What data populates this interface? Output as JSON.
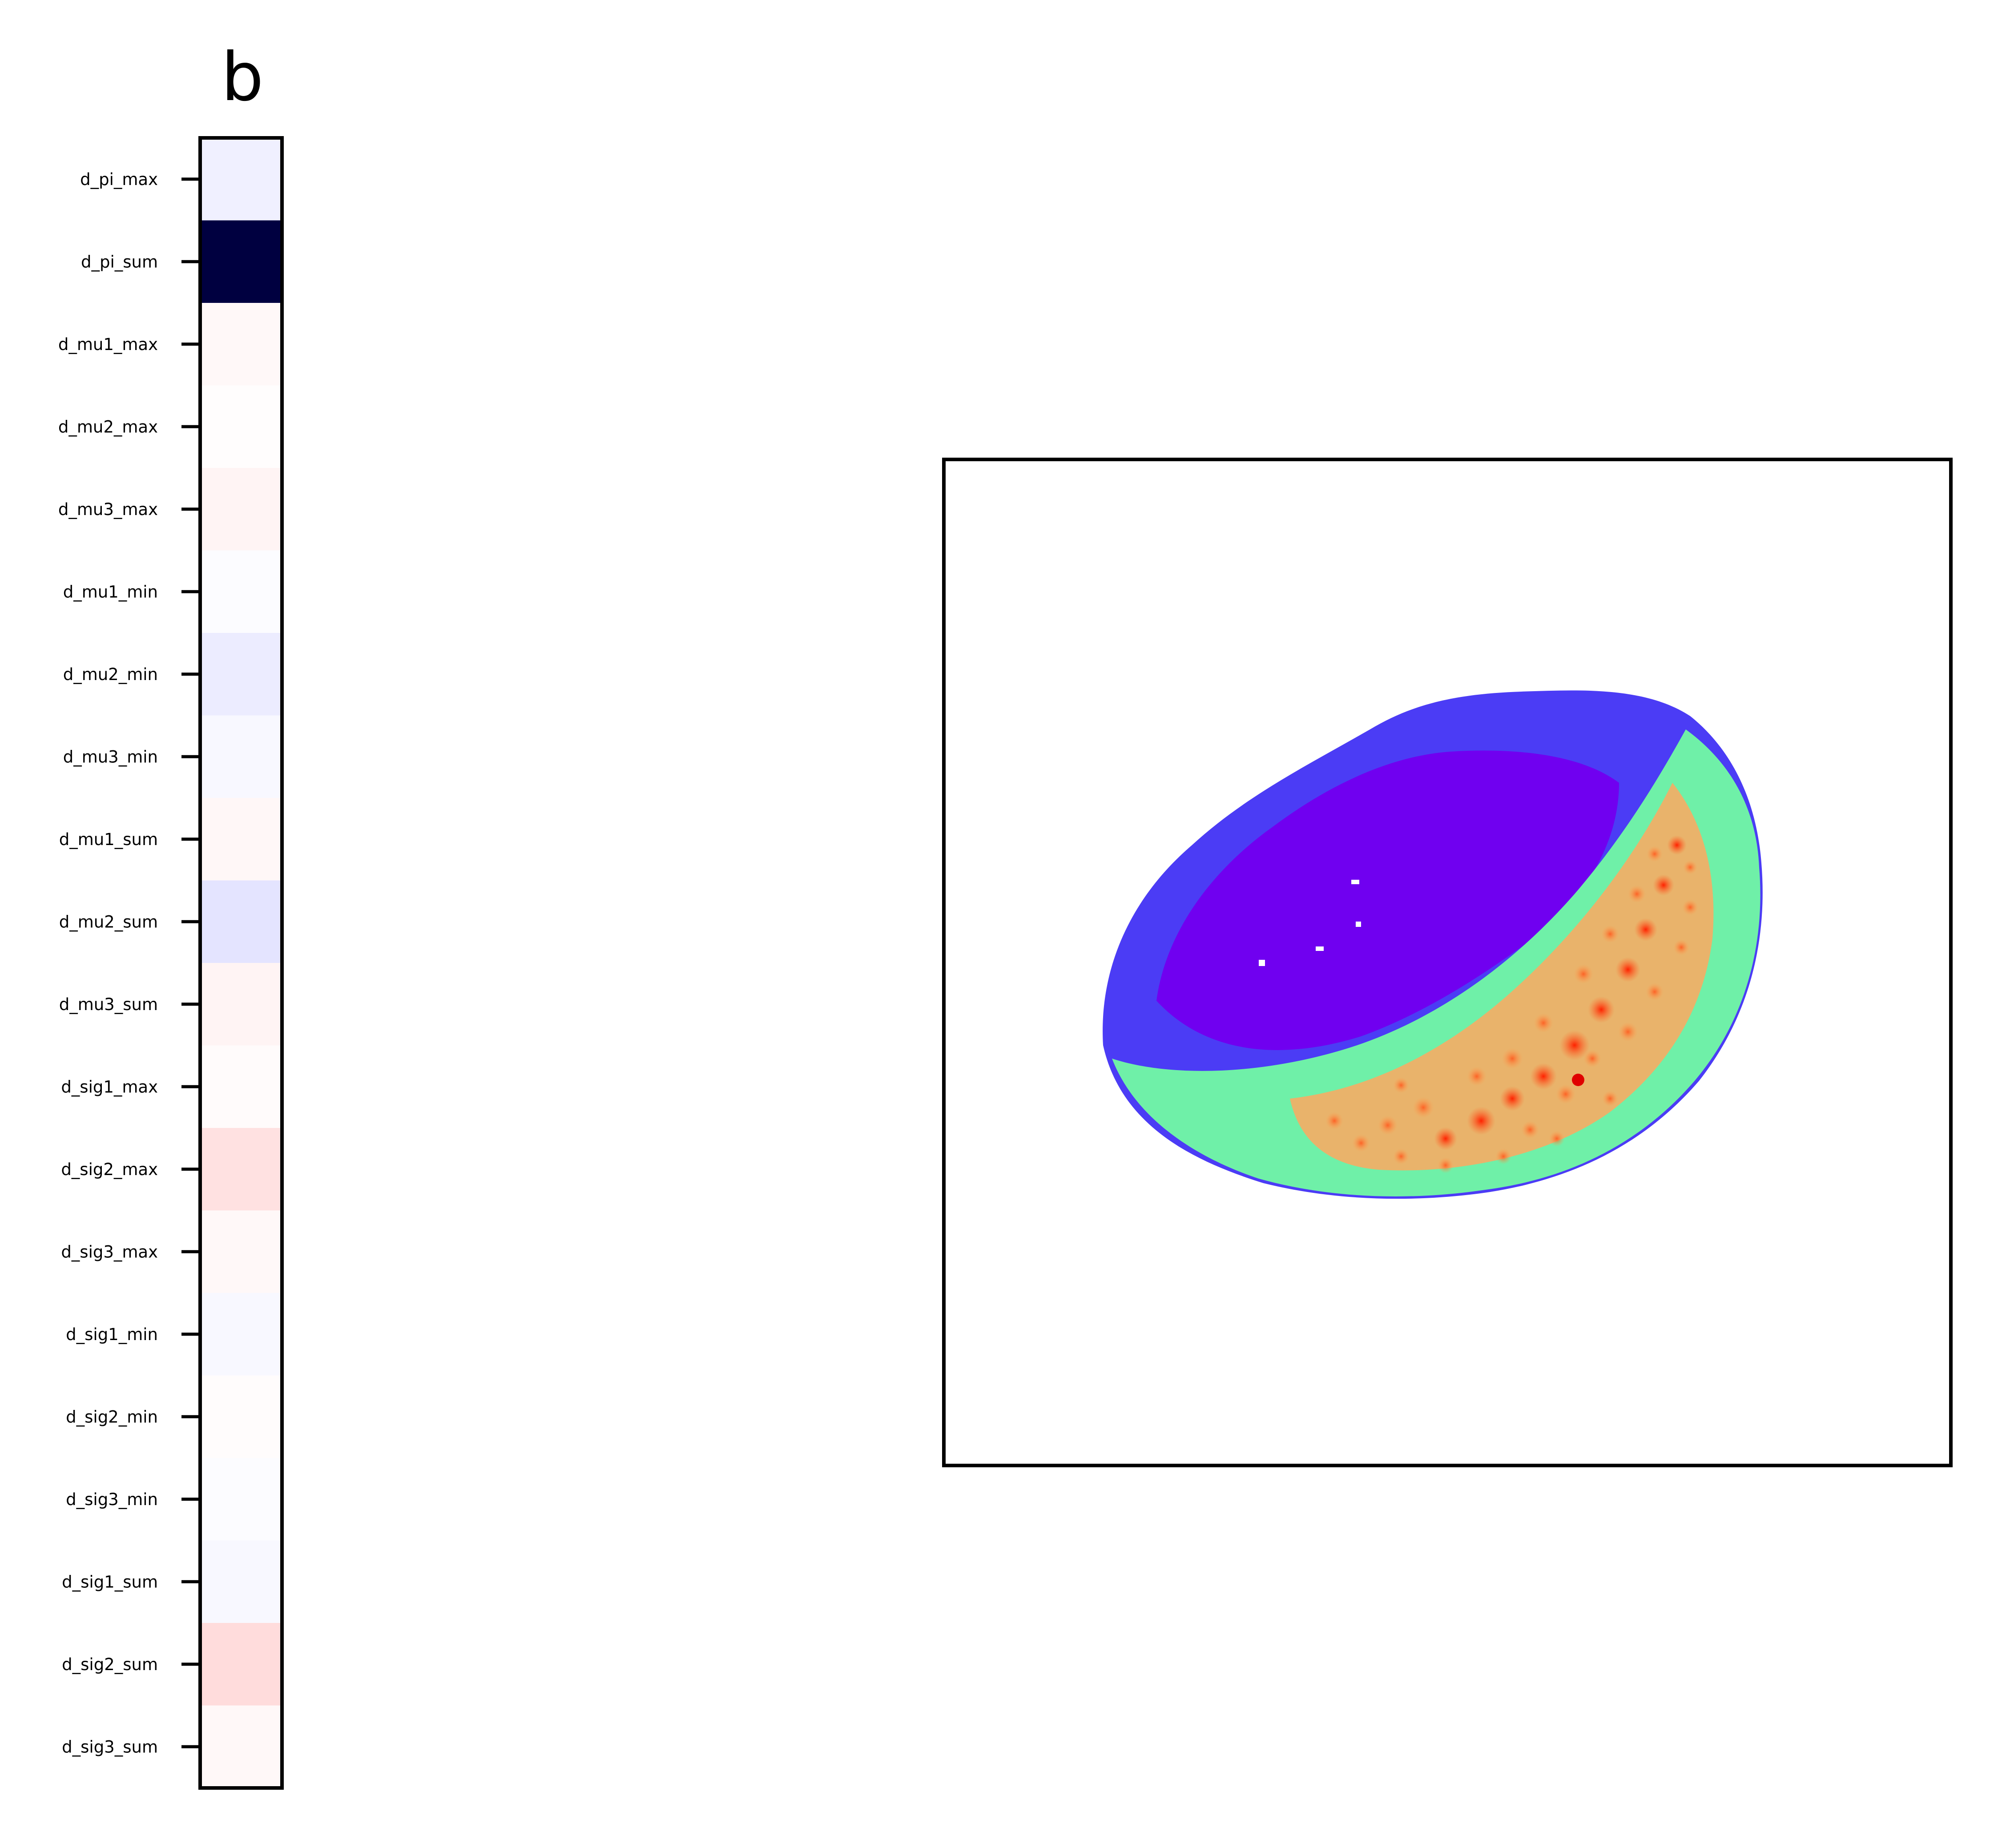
{
  "panel_title": "b",
  "chart_data": [
    {
      "type": "heatmap",
      "title": "b",
      "rows": [
        {
          "label": "d_pi_max",
          "color": "#f0f0ff"
        },
        {
          "label": "d_pi_sum",
          "color": "#000040"
        },
        {
          "label": "d_mu1_max",
          "color": "#fff8f8"
        },
        {
          "label": "d_mu2_max",
          "color": "#fffdfd"
        },
        {
          "label": "d_mu3_max",
          "color": "#fff4f4"
        },
        {
          "label": "d_mu1_min",
          "color": "#fcfcff"
        },
        {
          "label": "d_mu2_min",
          "color": "#ececff"
        },
        {
          "label": "d_mu3_min",
          "color": "#f8f8ff"
        },
        {
          "label": "d_mu1_sum",
          "color": "#fff7f7"
        },
        {
          "label": "d_mu2_sum",
          "color": "#e4e4ff"
        },
        {
          "label": "d_mu3_sum",
          "color": "#fff4f4"
        },
        {
          "label": "d_sig1_max",
          "color": "#fffbfb"
        },
        {
          "label": "d_sig2_max",
          "color": "#ffe1e1"
        },
        {
          "label": "d_sig3_max",
          "color": "#fff8f8"
        },
        {
          "label": "d_sig1_min",
          "color": "#f8f8ff"
        },
        {
          "label": "d_sig2_min",
          "color": "#fffcfc"
        },
        {
          "label": "d_sig3_min",
          "color": "#fcfcff"
        },
        {
          "label": "d_sig1_sum",
          "color": "#f8f8ff"
        },
        {
          "label": "d_sig2_sum",
          "color": "#ffdcdc"
        },
        {
          "label": "d_sig3_sum",
          "color": "#fff8f8"
        }
      ],
      "colormap": "bwr",
      "grid": false
    },
    {
      "type": "scatter",
      "description_colormap": "rainbow",
      "axes_ticks": false
    }
  ]
}
